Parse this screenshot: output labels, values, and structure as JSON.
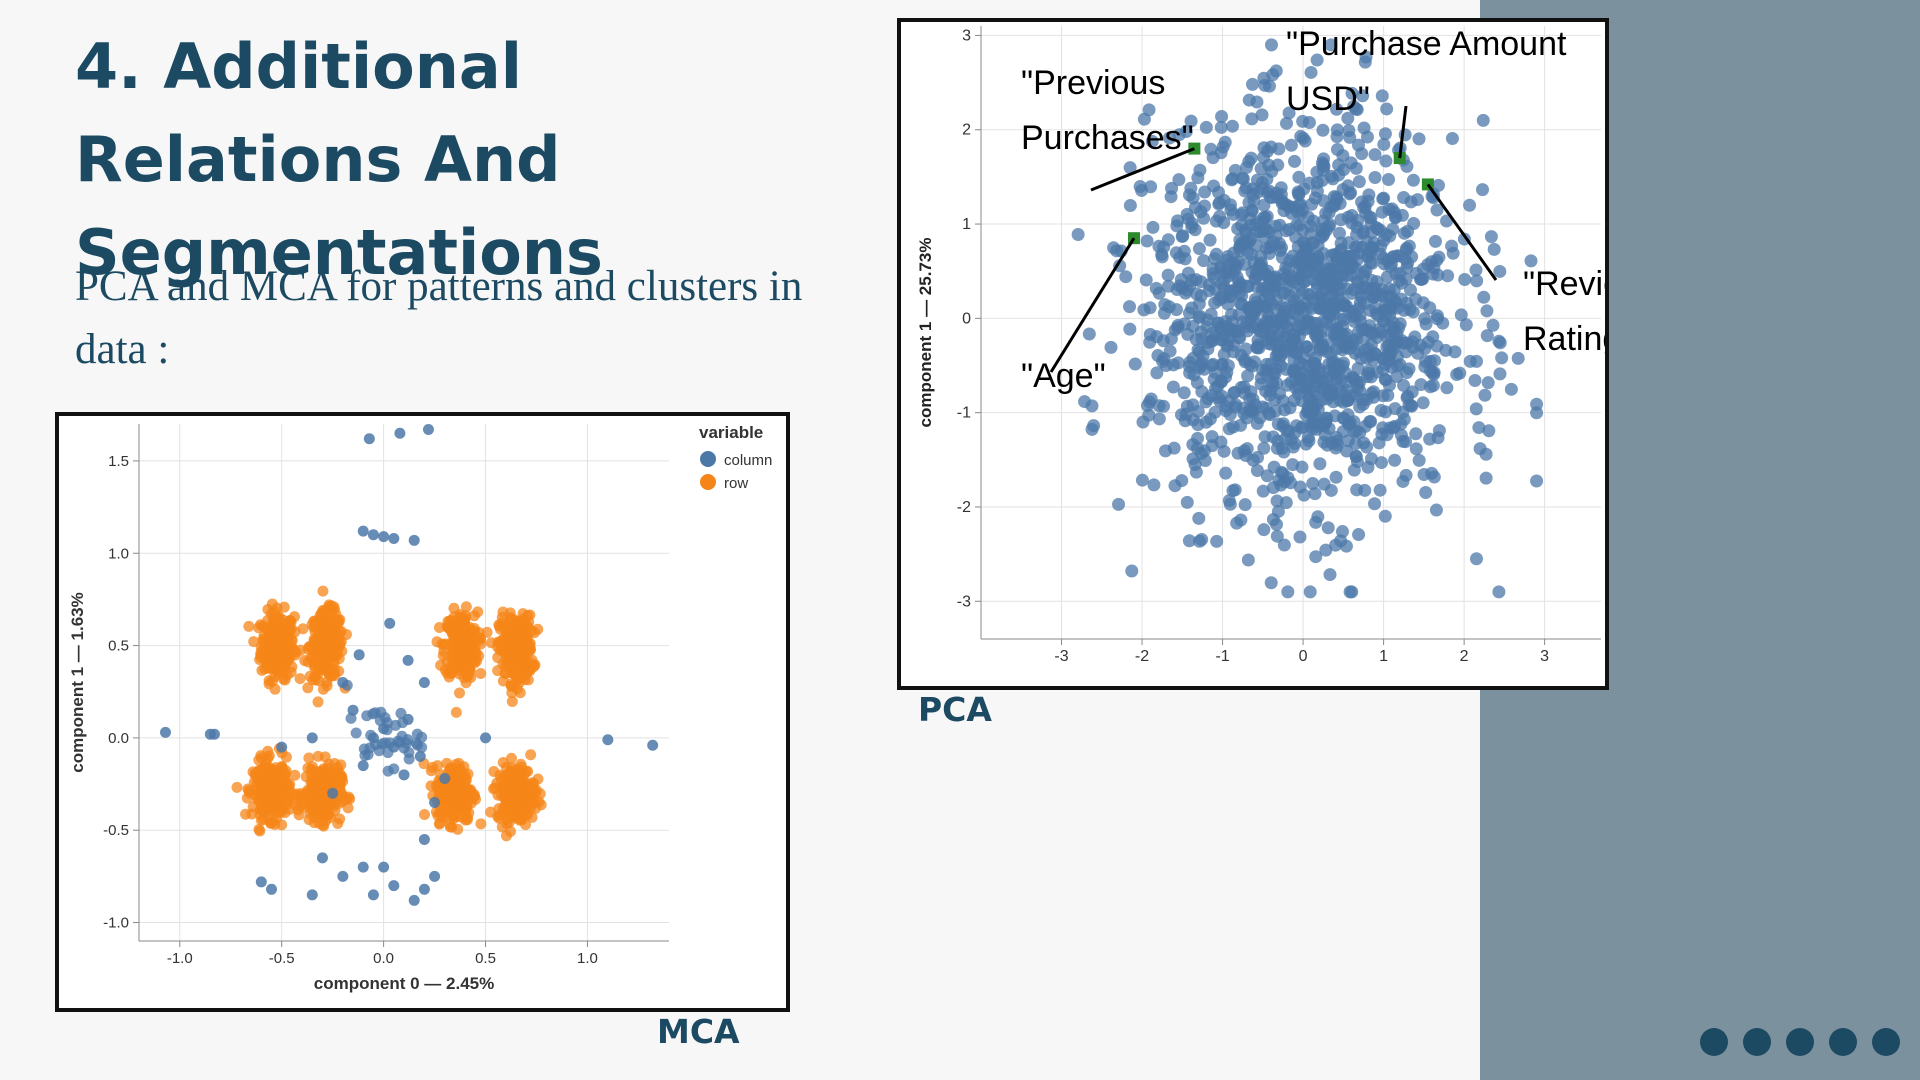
{
  "slide": {
    "title": "4. Additional Relations And Segmentations",
    "subtitle": "PCA and MCA for patterns and clusters in data :",
    "accent_color": "#1c4a63",
    "side_panel_color": "#7b919e",
    "pagination_dots": 5
  },
  "captions": {
    "mca": "MCA",
    "pca": "PCA"
  },
  "chart_data": [
    {
      "id": "mca",
      "type": "scatter",
      "xlabel": "component 0 — 2.45%",
      "ylabel": "component 1 — 1.63%",
      "xlim": [
        -1.2,
        1.4
      ],
      "ylim": [
        -1.1,
        1.7
      ],
      "xticks": [
        "-1.0",
        "-0.5",
        "0.0",
        "0.5",
        "1.0"
      ],
      "yticks": [
        "-1.0",
        "-0.5",
        "0.0",
        "0.5",
        "1.0",
        "1.5"
      ],
      "grid": true,
      "legend": {
        "title": "variable",
        "position": "top-right"
      },
      "series": [
        {
          "name": "column",
          "color": "#4c78a8",
          "points": [
            [
              -0.07,
              1.62
            ],
            [
              0.08,
              1.65
            ],
            [
              0.22,
              1.67
            ],
            [
              -0.1,
              1.12
            ],
            [
              -0.05,
              1.1
            ],
            [
              0.0,
              1.09
            ],
            [
              0.05,
              1.08
            ],
            [
              0.15,
              1.07
            ],
            [
              -1.07,
              0.03
            ],
            [
              -0.85,
              0.02
            ],
            [
              -0.83,
              0.02
            ],
            [
              1.1,
              -0.01
            ],
            [
              1.32,
              -0.04
            ],
            [
              -0.12,
              0.45
            ],
            [
              0.03,
              0.62
            ],
            [
              0.12,
              0.42
            ],
            [
              -0.2,
              0.3
            ],
            [
              0.2,
              0.3
            ],
            [
              -0.35,
              0.0
            ],
            [
              0.5,
              0.0
            ],
            [
              -0.5,
              -0.05
            ],
            [
              0.3,
              -0.22
            ],
            [
              -0.1,
              -0.15
            ],
            [
              0.1,
              -0.2
            ],
            [
              0.0,
              0.05
            ],
            [
              0.05,
              -0.05
            ],
            [
              -0.05,
              0.0
            ],
            [
              0.12,
              0.1
            ],
            [
              -0.15,
              0.15
            ],
            [
              0.18,
              -0.1
            ],
            [
              -0.25,
              -0.3
            ],
            [
              0.25,
              -0.35
            ],
            [
              -0.3,
              -0.65
            ],
            [
              0.2,
              -0.55
            ],
            [
              -0.35,
              -0.85
            ],
            [
              -0.2,
              -0.75
            ],
            [
              -0.05,
              -0.85
            ],
            [
              0.05,
              -0.8
            ],
            [
              0.15,
              -0.88
            ],
            [
              0.2,
              -0.82
            ],
            [
              0.25,
              -0.75
            ],
            [
              -0.6,
              -0.78
            ],
            [
              -0.55,
              -0.82
            ],
            [
              -0.1,
              -0.7
            ],
            [
              0.0,
              -0.7
            ]
          ]
        },
        {
          "name": "row",
          "color": "#f58518",
          "clusters": [
            {
              "center": [
                -0.52,
                0.5
              ],
              "spread": [
                0.09,
                0.2
              ]
            },
            {
              "center": [
                -0.28,
                0.5
              ],
              "spread": [
                0.09,
                0.2
              ]
            },
            {
              "center": [
                0.38,
                0.5
              ],
              "spread": [
                0.09,
                0.2
              ]
            },
            {
              "center": [
                0.65,
                0.48
              ],
              "spread": [
                0.09,
                0.2
              ]
            },
            {
              "center": [
                -0.55,
                -0.28
              ],
              "spread": [
                0.1,
                0.17
              ]
            },
            {
              "center": [
                -0.3,
                -0.3
              ],
              "spread": [
                0.1,
                0.17
              ]
            },
            {
              "center": [
                0.35,
                -0.3
              ],
              "spread": [
                0.1,
                0.17
              ]
            },
            {
              "center": [
                0.65,
                -0.3
              ],
              "spread": [
                0.1,
                0.17
              ]
            }
          ]
        }
      ]
    },
    {
      "id": "pca",
      "type": "scatter",
      "xlabel": "",
      "ylabel": "component 1 — 25.73%",
      "xlim": [
        -4,
        3.7
      ],
      "ylim": [
        -3.4,
        3.1
      ],
      "xticks": [
        "-3",
        "-2",
        "-1",
        "0",
        "1",
        "2",
        "3"
      ],
      "yticks": [
        "-3",
        "-2",
        "-1",
        "0",
        "1",
        "2",
        "3"
      ],
      "grid": true,
      "series": [
        {
          "name": "",
          "color": "#4c78a8",
          "distribution": {
            "center": [
              0,
              0
            ],
            "spread": [
              0.95,
              1.0
            ]
          }
        },
        {
          "name": "",
          "color": "#2d8a2d",
          "points": [
            {
              "label": "\"Age\"",
              "x": -2.1,
              "y": 0.85
            },
            {
              "label": "\"Previous Purchases\"",
              "x": -1.35,
              "y": 1.8
            },
            {
              "label": "\"Purchase Amount USD\"",
              "x": 1.2,
              "y": 1.7
            },
            {
              "label": "\"Review Rating\"",
              "x": 1.55,
              "y": 1.42
            }
          ]
        }
      ]
    }
  ]
}
